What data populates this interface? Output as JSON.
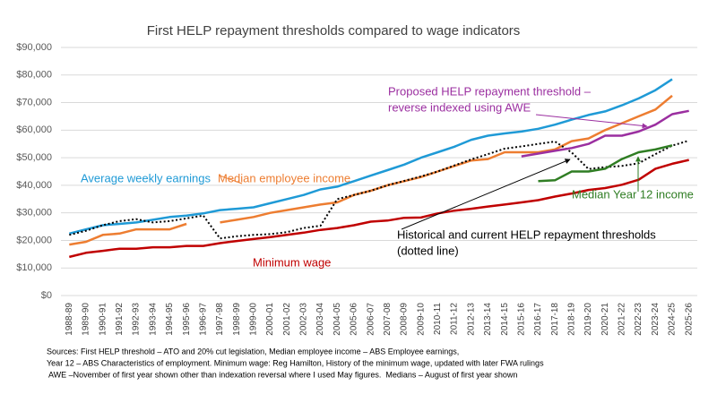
{
  "chart_data": {
    "type": "line",
    "title": "First HELP repayment thresholds compared to wage indicators",
    "categories": [
      "1988-89",
      "1989-90",
      "1990-91",
      "1991-92",
      "1992-93",
      "1993-94",
      "1994-95",
      "1995-96",
      "1996-97",
      "1997-98",
      "1998-99",
      "1999-00",
      "2000-01",
      "2001-02",
      "2002-03",
      "2003-04",
      "2004-05",
      "2005-06",
      "2006-07",
      "2007-08",
      "2008-09",
      "2009-10",
      "2010-11",
      "2011-12",
      "2012-13",
      "2013-14",
      "2014-15",
      "2015-16",
      "2016-17",
      "2017-18",
      "2018-19",
      "2019-20",
      "2020-21",
      "2021-22",
      "2022-23",
      "2023-24",
      "2024-25",
      "2025-26"
    ],
    "ylim": [
      0,
      90000
    ],
    "yticks": [
      {
        "value": 0,
        "label": "$0"
      },
      {
        "value": 10000,
        "label": "$10,000"
      },
      {
        "value": 20000,
        "label": "$20,000"
      },
      {
        "value": 30000,
        "label": "$30,000"
      },
      {
        "value": 40000,
        "label": "$40,000"
      },
      {
        "value": 50000,
        "label": "$50,000"
      },
      {
        "value": 60000,
        "label": "$60,000"
      },
      {
        "value": 70000,
        "label": "$70,000"
      },
      {
        "value": 80000,
        "label": "$80,000"
      },
      {
        "value": 90000,
        "label": "$90,000"
      }
    ],
    "grid": true,
    "series": [
      {
        "name": "Average weekly earnings",
        "color": "#1f9ad6",
        "dash": false,
        "values": [
          22500,
          24000,
          25500,
          26000,
          26500,
          27500,
          28500,
          29000,
          29800,
          31000,
          31500,
          32000,
          33500,
          35000,
          36500,
          38500,
          39500,
          41500,
          43500,
          45500,
          47500,
          50000,
          52000,
          54000,
          56500,
          58000,
          58800,
          59500,
          60500,
          62000,
          63800,
          65500,
          66800,
          69000,
          71500,
          74500,
          78500,
          null
        ]
      },
      {
        "name": "Median employee income",
        "color": "#ed7d31",
        "dash": false,
        "values": [
          18500,
          19500,
          22000,
          22500,
          24000,
          24000,
          24000,
          26000,
          null,
          26500,
          27500,
          28500,
          30000,
          31000,
          32000,
          33000,
          33800,
          36500,
          38000,
          40000,
          41500,
          43000,
          45000,
          47000,
          49000,
          49500,
          52000,
          52000,
          52000,
          53000,
          56000,
          57000,
          60000,
          62500,
          65000,
          67500,
          72500,
          null
        ]
      },
      {
        "name": "Minimum wage",
        "color": "#c00000",
        "dash": false,
        "values": [
          14000,
          15500,
          16200,
          17000,
          17000,
          17500,
          17500,
          18000,
          18000,
          19000,
          19800,
          20500,
          21200,
          22000,
          22800,
          23800,
          24500,
          25500,
          26800,
          27200,
          28200,
          28300,
          29800,
          30800,
          31500,
          32300,
          33000,
          33800,
          34600,
          35900,
          37000,
          38300,
          39000,
          40200,
          42000,
          46000,
          47800,
          49200
        ]
      },
      {
        "name": "Historical and current HELP repayment thresholds (dotted line)",
        "color": "#000000",
        "dash": true,
        "values": [
          22000,
          23500,
          25500,
          27000,
          27700,
          26500,
          27000,
          28000,
          29000,
          20700,
          21500,
          22000,
          22300,
          23000,
          24500,
          25300,
          35000,
          36500,
          38000,
          40000,
          41600,
          43200,
          45000,
          47200,
          49400,
          51300,
          53300,
          54100,
          55000,
          55900,
          51900,
          45900,
          46600,
          47000,
          48000,
          51300,
          54400,
          56200
        ]
      },
      {
        "name": "Proposed HELP repayment threshold – reverse indexed using AWE",
        "color": "#9b2fa0",
        "dash": false,
        "values": [
          null,
          null,
          null,
          null,
          null,
          null,
          null,
          null,
          null,
          null,
          null,
          null,
          null,
          null,
          null,
          null,
          null,
          null,
          null,
          null,
          null,
          null,
          null,
          null,
          null,
          null,
          null,
          50500,
          51500,
          52500,
          53500,
          55000,
          58000,
          58000,
          59500,
          62000,
          65800,
          67000
        ]
      },
      {
        "name": "Median Year 12 income",
        "color": "#2f7d23",
        "dash": false,
        "values": [
          null,
          null,
          null,
          null,
          null,
          null,
          null,
          null,
          null,
          null,
          null,
          null,
          null,
          null,
          null,
          null,
          null,
          null,
          null,
          null,
          null,
          null,
          null,
          null,
          null,
          null,
          null,
          null,
          41500,
          41800,
          45000,
          45000,
          46000,
          49500,
          52000,
          53000,
          54500,
          null
        ]
      }
    ],
    "annotations": [
      {
        "lines": [
          "Average weekly earnings"
        ],
        "color": "#1f9ad6"
      },
      {
        "lines": [
          "Median employee income"
        ],
        "color": "#ed7d31"
      },
      {
        "lines": [
          "Minimum wage"
        ],
        "color": "#c00000"
      },
      {
        "lines": [
          "Proposed HELP repayment threshold –",
          "reverse indexed using AWE"
        ],
        "color": "#9b2fa0"
      },
      {
        "lines": [
          "Median Year 12 income"
        ],
        "color": "#2f7d23"
      },
      {
        "lines": [
          "Historical and current HELP repayment thresholds",
          "(dotted line)"
        ],
        "color": "#000000"
      }
    ],
    "notes": [
      "Sources: First HELP threshold – ATO and 20% cut legislation, Median employee income – ABS Employee earnings,",
      "Year 12 – ABS Characteristics of employment. Minimum wage: Reg Hamilton, History of the minimum wage, updated with later FWA rulings",
      " AWE –November of first year shown other than indexation reversal where I used May figures.  Medians – August of first year shown"
    ]
  }
}
